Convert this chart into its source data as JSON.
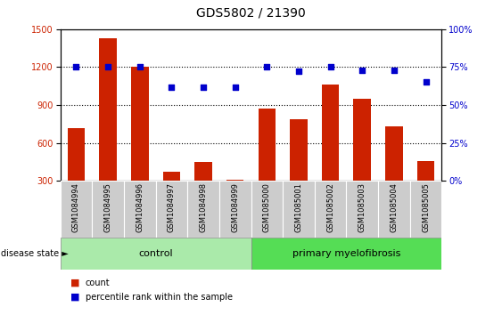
{
  "title": "GDS5802 / 21390",
  "samples": [
    "GSM1084994",
    "GSM1084995",
    "GSM1084996",
    "GSM1084997",
    "GSM1084998",
    "GSM1084999",
    "GSM1085000",
    "GSM1085001",
    "GSM1085002",
    "GSM1085003",
    "GSM1085004",
    "GSM1085005"
  ],
  "counts": [
    720,
    1430,
    1200,
    370,
    450,
    310,
    870,
    790,
    1060,
    950,
    730,
    460
  ],
  "percentiles": [
    75,
    75,
    75,
    62,
    62,
    62,
    75,
    72,
    75,
    73,
    73,
    65
  ],
  "bar_color": "#cc2200",
  "dot_color": "#0000cc",
  "control_count": 6,
  "primary_count": 6,
  "group_labels": [
    "control",
    "primary myelofibrosis"
  ],
  "group_color_ctrl": "#aaeaaa",
  "group_color_prim": "#55dd55",
  "ylim_left": [
    300,
    1500
  ],
  "ylim_right": [
    0,
    100
  ],
  "yticks_left": [
    300,
    600,
    900,
    1200,
    1500
  ],
  "yticks_right": [
    0,
    25,
    50,
    75,
    100
  ],
  "gridlines_at": [
    600,
    900,
    1200
  ],
  "legend_count_label": "count",
  "legend_pct_label": "percentile rank within the sample",
  "disease_state_label": "disease state",
  "tick_area_color": "#cccccc",
  "title_fontsize": 10,
  "tick_fontsize": 7,
  "sample_fontsize": 6,
  "label_fontsize": 8
}
